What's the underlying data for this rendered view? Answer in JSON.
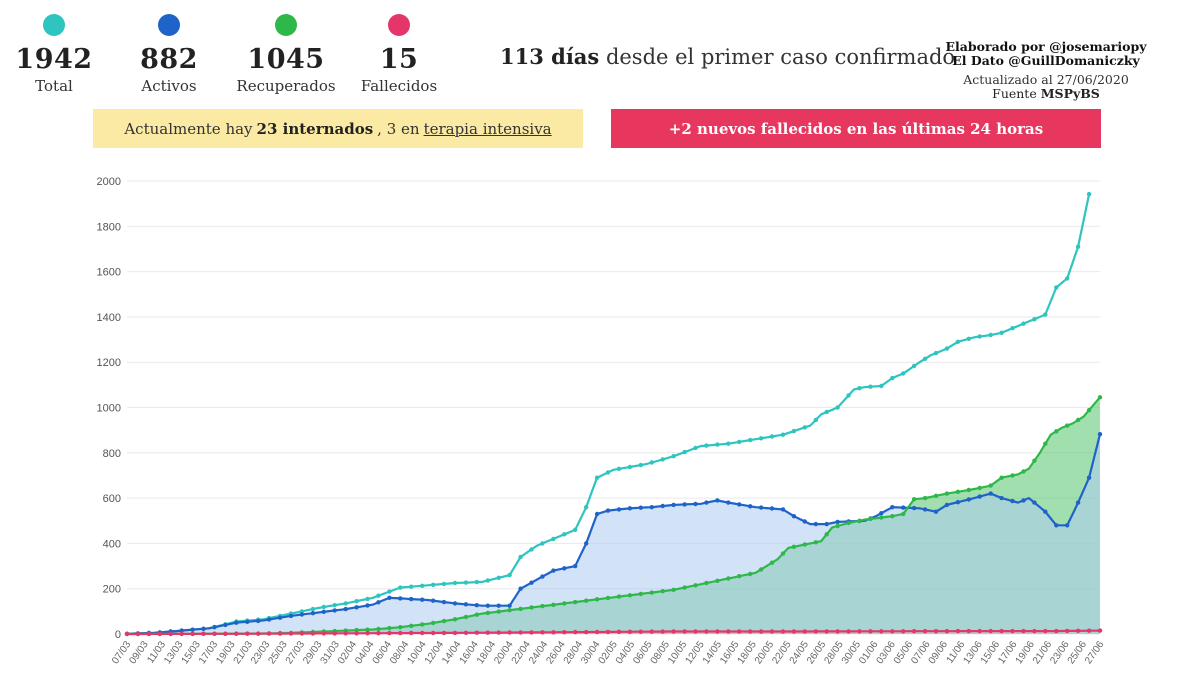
{
  "stats": [
    {
      "value": "1942",
      "label": "Total",
      "color": "#2ec4c0"
    },
    {
      "value": "882",
      "label": "Activos",
      "color": "#1f63c9"
    },
    {
      "value": "1045",
      "label": "Recuperados",
      "color": "#2fb84a"
    },
    {
      "value": "15",
      "label": "Fallecidos",
      "color": "#e4366a"
    }
  ],
  "days": {
    "bold": "113 días",
    "text": "desde el primer caso confirmado"
  },
  "credits": {
    "line1": "Elaborado por @josemariopy",
    "line2": "El Dato @GuillDomaniczky",
    "updated": "Actualizado al 27/06/2020",
    "source_prefix": "Fuente",
    "source": "MSPyBS"
  },
  "banners": {
    "yellow": {
      "pre": "Actualmente hay",
      "bold": "23 internados",
      "mid": ", 3 en",
      "link": "terapia intensiva"
    },
    "red": "+2 nuevos fallecidos en las últimas 24 horas"
  },
  "chart_data": {
    "type": "area",
    "x_start": "07/03/2020",
    "x_end": "27/06/2020",
    "ylim": [
      0,
      2000
    ],
    "yticks": [
      0,
      200,
      400,
      600,
      800,
      1000,
      1200,
      1400,
      1600,
      1800,
      2000
    ],
    "xticks": [
      "07/03",
      "09/03",
      "11/03",
      "13/03",
      "15/03",
      "17/03",
      "19/03",
      "21/03",
      "23/03",
      "25/03",
      "27/03",
      "29/03",
      "31/03",
      "02/04",
      "04/04",
      "06/04",
      "08/04",
      "10/04",
      "12/04",
      "14/04",
      "16/04",
      "18/04",
      "20/04",
      "22/04",
      "24/04",
      "26/04",
      "28/04",
      "30/04",
      "02/05",
      "04/05",
      "06/05",
      "08/05",
      "10/05",
      "12/05",
      "14/05",
      "16/05",
      "18/05",
      "20/05",
      "22/05",
      "24/05",
      "26/05",
      "28/05",
      "30/05",
      "01/06",
      "03/06",
      "05/06",
      "07/06",
      "09/06",
      "11/06",
      "13/06",
      "15/06",
      "17/06",
      "19/06",
      "21/06",
      "23/06",
      "25/06",
      "27/06"
    ],
    "grid": true,
    "legend": "none",
    "series": [
      {
        "name": "Total",
        "color": "#2ec4c0",
        "fill": false,
        "points": [
          [
            0,
            1
          ],
          [
            5,
            5
          ],
          [
            10,
            15
          ],
          [
            15,
            25
          ],
          [
            20,
            55
          ],
          [
            25,
            65
          ],
          [
            30,
            90
          ],
          [
            35,
            115
          ],
          [
            40,
            135
          ],
          [
            45,
            160
          ],
          [
            50,
            205
          ],
          [
            55,
            215
          ],
          [
            60,
            225
          ],
          [
            65,
            230
          ],
          [
            70,
            260
          ],
          [
            72,
            340
          ],
          [
            75,
            390
          ],
          [
            78,
            420
          ],
          [
            82,
            460
          ],
          [
            84,
            560
          ],
          [
            86,
            690
          ],
          [
            89,
            725
          ],
          [
            95,
            750
          ],
          [
            100,
            785
          ],
          [
            105,
            830
          ],
          [
            110,
            840
          ],
          [
            115,
            860
          ],
          [
            120,
            880
          ],
          [
            125,
            920
          ],
          [
            127,
            970
          ],
          [
            130,
            1000
          ],
          [
            133,
            1080
          ],
          [
            135,
            1090
          ],
          [
            138,
            1095
          ],
          [
            140,
            1130
          ],
          [
            142,
            1150
          ],
          [
            145,
            1200
          ],
          [
            147,
            1230
          ],
          [
            150,
            1260
          ],
          [
            152,
            1290
          ],
          [
            155,
            1310
          ],
          [
            158,
            1320
          ],
          [
            160,
            1330
          ],
          [
            165,
            1380
          ],
          [
            168,
            1410
          ],
          [
            170,
            1530
          ],
          [
            172,
            1570
          ],
          [
            174,
            1710
          ],
          [
            176,
            1942
          ]
        ]
      },
      {
        "name": "Activos",
        "color": "#1f63c9",
        "fill": true,
        "points": [
          [
            0,
            1
          ],
          [
            5,
            5
          ],
          [
            10,
            15
          ],
          [
            15,
            25
          ],
          [
            20,
            50
          ],
          [
            25,
            60
          ],
          [
            30,
            80
          ],
          [
            35,
            95
          ],
          [
            40,
            110
          ],
          [
            45,
            130
          ],
          [
            48,
            160
          ],
          [
            55,
            150
          ],
          [
            60,
            135
          ],
          [
            65,
            125
          ],
          [
            70,
            125
          ],
          [
            72,
            200
          ],
          [
            75,
            240
          ],
          [
            78,
            280
          ],
          [
            80,
            290
          ],
          [
            82,
            300
          ],
          [
            84,
            400
          ],
          [
            86,
            530
          ],
          [
            88,
            545
          ],
          [
            92,
            555
          ],
          [
            96,
            560
          ],
          [
            100,
            570
          ],
          [
            105,
            575
          ],
          [
            108,
            590
          ],
          [
            110,
            580
          ],
          [
            115,
            560
          ],
          [
            120,
            550
          ],
          [
            122,
            520
          ],
          [
            125,
            485
          ],
          [
            128,
            485
          ],
          [
            130,
            495
          ],
          [
            135,
            500
          ],
          [
            137,
            520
          ],
          [
            140,
            560
          ],
          [
            145,
            555
          ],
          [
            148,
            540
          ],
          [
            150,
            570
          ],
          [
            155,
            600
          ],
          [
            158,
            620
          ],
          [
            160,
            600
          ],
          [
            163,
            580
          ],
          [
            165,
            600
          ],
          [
            168,
            540
          ],
          [
            170,
            480
          ],
          [
            172,
            480
          ],
          [
            174,
            580
          ],
          [
            176,
            690
          ],
          [
            178,
            882
          ]
        ]
      },
      {
        "name": "Recuperados",
        "color": "#2fb84a",
        "fill": true,
        "points": [
          [
            0,
            0
          ],
          [
            25,
            2
          ],
          [
            30,
            5
          ],
          [
            35,
            10
          ],
          [
            40,
            15
          ],
          [
            45,
            20
          ],
          [
            50,
            30
          ],
          [
            55,
            45
          ],
          [
            60,
            65
          ],
          [
            65,
            90
          ],
          [
            70,
            105
          ],
          [
            75,
            120
          ],
          [
            80,
            135
          ],
          [
            85,
            150
          ],
          [
            90,
            165
          ],
          [
            95,
            180
          ],
          [
            100,
            195
          ],
          [
            105,
            220
          ],
          [
            110,
            245
          ],
          [
            115,
            270
          ],
          [
            117,
            300
          ],
          [
            119,
            330
          ],
          [
            121,
            380
          ],
          [
            124,
            395
          ],
          [
            127,
            410
          ],
          [
            129,
            470
          ],
          [
            132,
            490
          ],
          [
            135,
            505
          ],
          [
            140,
            520
          ],
          [
            142,
            530
          ],
          [
            144,
            595
          ],
          [
            146,
            600
          ],
          [
            150,
            620
          ],
          [
            155,
            640
          ],
          [
            158,
            655
          ],
          [
            160,
            690
          ],
          [
            163,
            705
          ],
          [
            165,
            730
          ],
          [
            167,
            800
          ],
          [
            169,
            880
          ],
          [
            171,
            910
          ],
          [
            173,
            930
          ],
          [
            175,
            960
          ],
          [
            178,
            1045
          ]
        ]
      },
      {
        "name": "Fallecidos",
        "color": "#e4366a",
        "fill": false,
        "points": [
          [
            0,
            0
          ],
          [
            20,
            1
          ],
          [
            40,
            3
          ],
          [
            60,
            5
          ],
          [
            80,
            8
          ],
          [
            100,
            11
          ],
          [
            120,
            11
          ],
          [
            140,
            12
          ],
          [
            160,
            13
          ],
          [
            170,
            13
          ],
          [
            178,
            15
          ]
        ]
      }
    ]
  }
}
